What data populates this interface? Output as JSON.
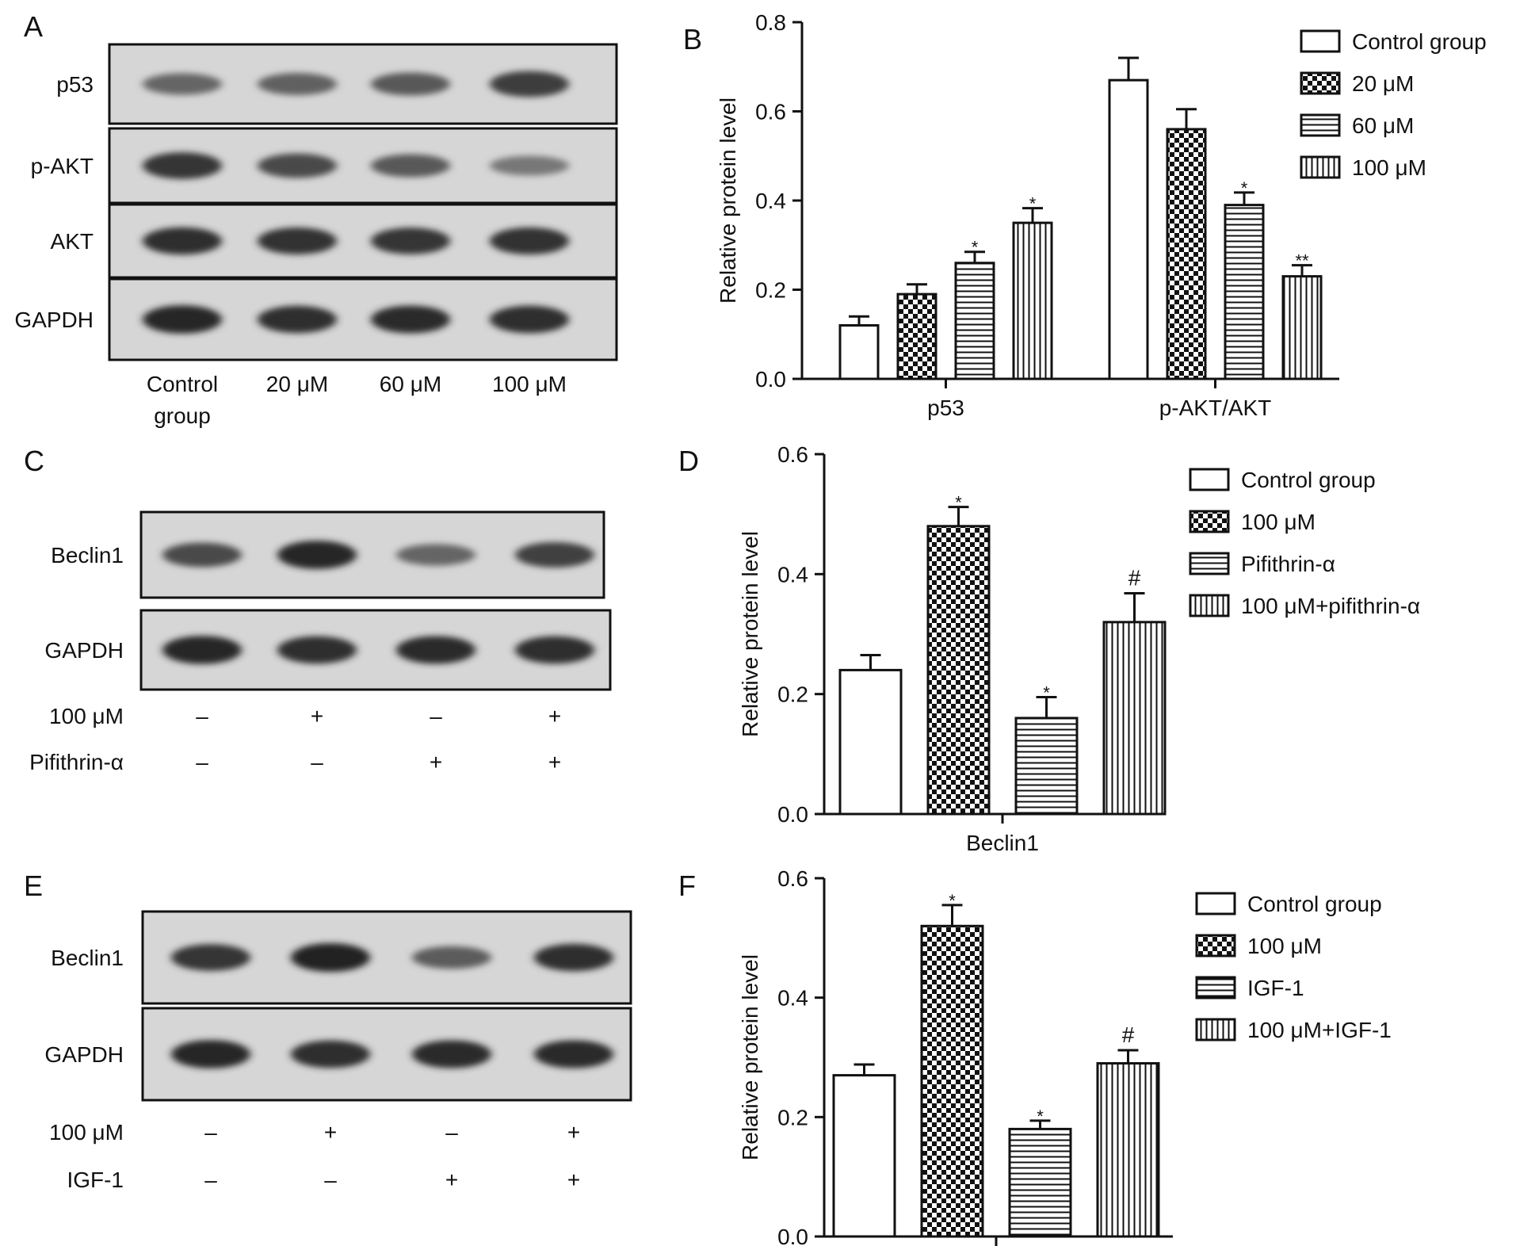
{
  "panels": {
    "A": {
      "letter": "A",
      "blot_labels": [
        "p53",
        "p-AKT",
        "AKT",
        "GAPDH"
      ],
      "lane_labels": [
        [
          "Control",
          "group"
        ],
        [
          "20 μM"
        ],
        [
          "60 μM"
        ],
        [
          "100 μM"
        ]
      ],
      "band_intensity": [
        [
          0.55,
          0.58,
          0.62,
          0.78
        ],
        [
          0.82,
          0.7,
          0.62,
          0.45
        ],
        [
          0.85,
          0.83,
          0.82,
          0.84
        ],
        [
          0.9,
          0.85,
          0.87,
          0.86
        ]
      ]
    },
    "C": {
      "letter": "C",
      "blot_labels": [
        "Beclin1",
        "GAPDH"
      ],
      "treatment_rows": [
        {
          "label": "100 μM",
          "signs": [
            "–",
            "+",
            "–",
            "+"
          ]
        },
        {
          "label": "Pifithrin-α",
          "signs": [
            "–",
            "–",
            "+",
            "+"
          ]
        }
      ],
      "band_intensity": [
        [
          0.7,
          0.9,
          0.55,
          0.75
        ],
        [
          0.9,
          0.86,
          0.88,
          0.86
        ]
      ]
    },
    "E": {
      "letter": "E",
      "blot_labels": [
        "Beclin1",
        "GAPDH"
      ],
      "treatment_rows": [
        {
          "label": "100 μM",
          "signs": [
            "–",
            "+",
            "–",
            "+"
          ]
        },
        {
          "label": "IGF-1",
          "signs": [
            "–",
            "–",
            "+",
            "+"
          ]
        }
      ],
      "band_intensity": [
        [
          0.82,
          0.92,
          0.6,
          0.85
        ],
        [
          0.9,
          0.86,
          0.88,
          0.88
        ]
      ]
    }
  },
  "chart_data": [
    {
      "panel": "B",
      "type": "bar",
      "ylabel": "Relative protein level",
      "ylim": [
        0,
        0.8
      ],
      "yticks": [
        "0.0",
        "0.2",
        "0.4",
        "0.6",
        "0.8"
      ],
      "categories": [
        "p53",
        "p-AKT/AKT"
      ],
      "series": [
        {
          "name": "Control group",
          "pattern": "white",
          "values": [
            0.12,
            0.67
          ],
          "errors": [
            0.02,
            0.05
          ],
          "marks": [
            "",
            ""
          ]
        },
        {
          "name": "20 μM",
          "pattern": "checker",
          "values": [
            0.19,
            0.56
          ],
          "errors": [
            0.022,
            0.045
          ],
          "marks": [
            "",
            ""
          ]
        },
        {
          "name": "60 μM",
          "pattern": "hlines",
          "values": [
            0.26,
            0.39
          ],
          "errors": [
            0.025,
            0.028
          ],
          "marks": [
            "*",
            "*"
          ]
        },
        {
          "name": "100 μM",
          "pattern": "vlines",
          "values": [
            0.35,
            0.23
          ],
          "errors": [
            0.033,
            0.025
          ],
          "marks": [
            "*",
            "**"
          ]
        }
      ],
      "legend_position": "top-right"
    },
    {
      "panel": "D",
      "type": "bar",
      "ylabel": "Relative protein level",
      "ylim": [
        0,
        0.6
      ],
      "yticks": [
        "0.0",
        "0.2",
        "0.4",
        "0.6"
      ],
      "categories": [
        "Beclin1"
      ],
      "series": [
        {
          "name": "Control group",
          "pattern": "white",
          "values": [
            0.24
          ],
          "errors": [
            0.025
          ],
          "marks": [
            ""
          ]
        },
        {
          "name": "100 μM",
          "pattern": "checker",
          "values": [
            0.48
          ],
          "errors": [
            0.032
          ],
          "marks": [
            "*"
          ]
        },
        {
          "name": "Pifithrin-α",
          "pattern": "hlines",
          "values": [
            0.16
          ],
          "errors": [
            0.035
          ],
          "marks": [
            "*"
          ]
        },
        {
          "name": "100 μM+pifithrin-α",
          "pattern": "vlines",
          "values": [
            0.32
          ],
          "errors": [
            0.048
          ],
          "marks": [
            "#"
          ]
        }
      ],
      "legend_position": "top-right"
    },
    {
      "panel": "F",
      "type": "bar",
      "ylabel": "Relative protein level",
      "ylim": [
        0,
        0.6
      ],
      "yticks": [
        "0.0",
        "0.2",
        "0.4",
        "0.6"
      ],
      "categories": [
        ""
      ],
      "series": [
        {
          "name": "Control group",
          "pattern": "white",
          "values": [
            0.27
          ],
          "errors": [
            0.018
          ],
          "marks": [
            ""
          ]
        },
        {
          "name": "100 μM",
          "pattern": "checker",
          "values": [
            0.52
          ],
          "errors": [
            0.035
          ],
          "marks": [
            "*"
          ]
        },
        {
          "name": "IGF-1",
          "pattern": "hlines",
          "values": [
            0.18
          ],
          "errors": [
            0.014
          ],
          "marks": [
            "*"
          ]
        },
        {
          "name": "100 μM+IGF-1",
          "pattern": "vlines",
          "values": [
            0.29
          ],
          "errors": [
            0.022
          ],
          "marks": [
            "#"
          ]
        }
      ],
      "legend_position": "top-right"
    }
  ]
}
